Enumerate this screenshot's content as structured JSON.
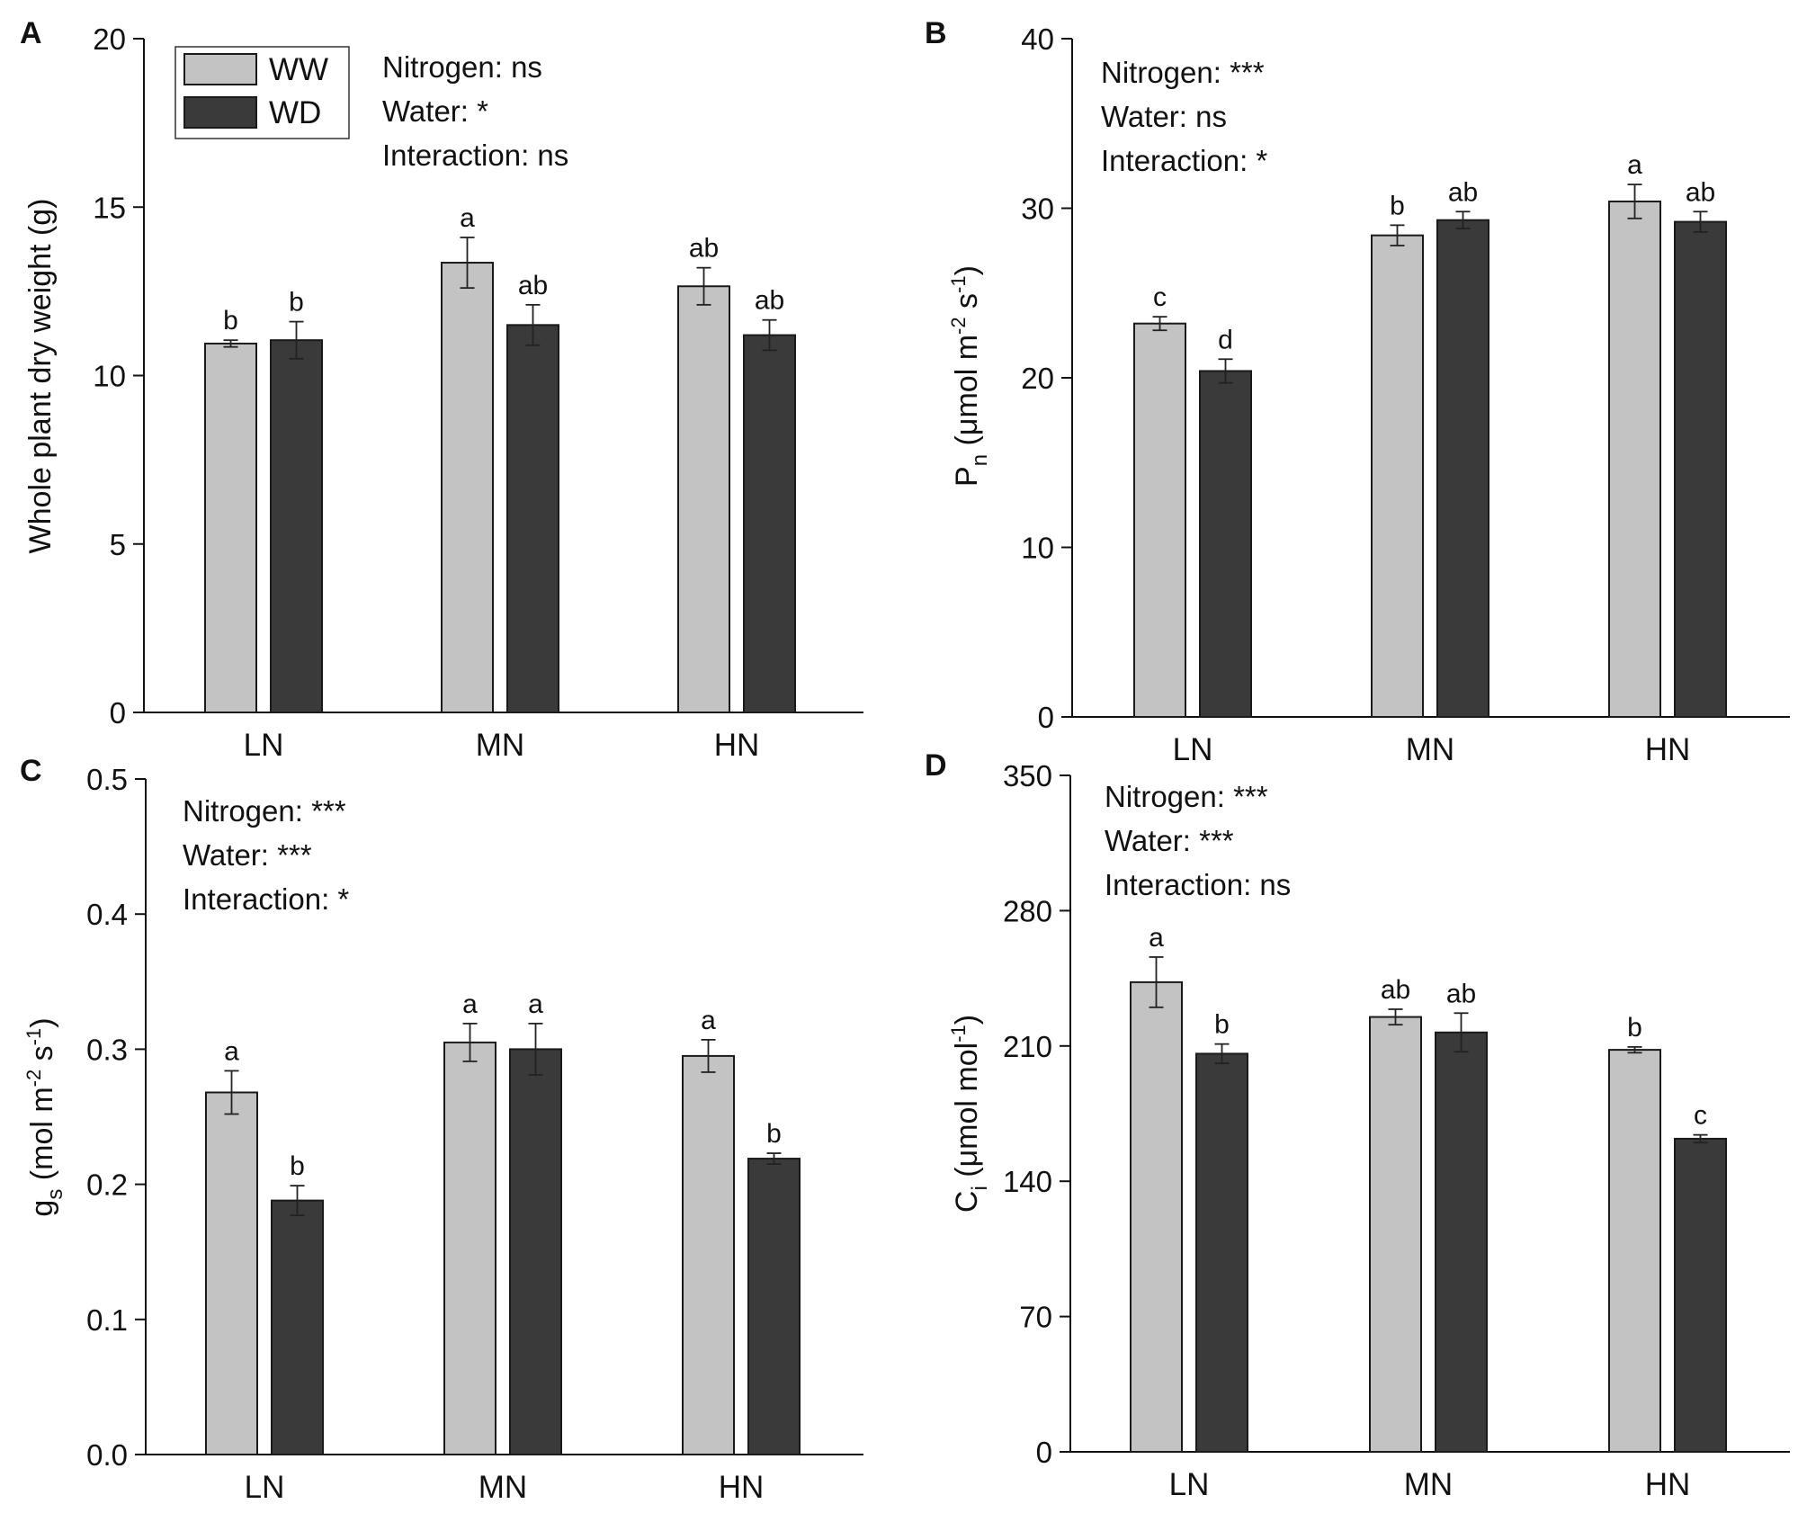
{
  "figure": {
    "background": "#ffffff",
    "colors": {
      "ww": "#c3c3c3",
      "wd": "#3a3a3a",
      "axis": "#111111",
      "error": "#222222"
    },
    "legend": [
      {
        "key": "ww",
        "label": "WW"
      },
      {
        "key": "wd",
        "label": "WD"
      }
    ]
  },
  "chart_data": [
    {
      "panel": "A",
      "type": "bar",
      "categories": [
        "LN",
        "MN",
        "HN"
      ],
      "ylim": [
        0,
        20
      ],
      "yticks": [
        "0",
        "5",
        "10",
        "15",
        "20"
      ],
      "ylabel": {
        "main": "Whole plant dry weight (g)"
      },
      "legend_position": "top-left",
      "anova": [
        "Nitrogen: ns",
        "Water: *",
        "Interaction: ns"
      ],
      "series": [
        {
          "name": "WW",
          "values": [
            10.95,
            13.35,
            12.65
          ],
          "errors": [
            0.1,
            0.75,
            0.55
          ],
          "letters": [
            "b",
            "a",
            "ab"
          ]
        },
        {
          "name": "WD",
          "values": [
            11.05,
            11.5,
            11.2
          ],
          "errors": [
            0.55,
            0.6,
            0.45
          ],
          "letters": [
            "b",
            "ab",
            "ab"
          ]
        }
      ]
    },
    {
      "panel": "B",
      "type": "bar",
      "categories": [
        "LN",
        "MN",
        "HN"
      ],
      "ylim": [
        0,
        40
      ],
      "yticks": [
        "0",
        "10",
        "20",
        "30",
        "40"
      ],
      "ylabel": {
        "main": "P",
        "sub": "n",
        "unit_open": " (",
        "mu": "μ",
        "unit_mid1": "mol m",
        "sup1": "-2",
        "unit_mid2": " s",
        "sup2": "-1",
        "unit_close": ")"
      },
      "anova": [
        "Nitrogen: ***",
        "Water: ns",
        "Interaction: *"
      ],
      "series": [
        {
          "name": "WW",
          "values": [
            23.2,
            28.4,
            30.4
          ],
          "errors": [
            0.4,
            0.6,
            1.0
          ],
          "letters": [
            "c",
            "b",
            "a"
          ]
        },
        {
          "name": "WD",
          "values": [
            20.4,
            29.3,
            29.2
          ],
          "errors": [
            0.7,
            0.5,
            0.6
          ],
          "letters": [
            "d",
            "ab",
            "ab"
          ]
        }
      ]
    },
    {
      "panel": "C",
      "type": "bar",
      "categories": [
        "LN",
        "MN",
        "HN"
      ],
      "ylim": [
        0,
        0.5
      ],
      "yticks": [
        "0.0",
        "0.1",
        "0.2",
        "0.3",
        "0.4",
        "0.5"
      ],
      "ylabel": {
        "main": "g",
        "sub": "s",
        "unit_open": " (",
        "unit_mid1": "mol m",
        "sup1": "-2",
        "unit_mid2": " s",
        "sup2": "-1",
        "unit_close": ")"
      },
      "anova": [
        "Nitrogen: ***",
        "Water: ***",
        "Interaction: *"
      ],
      "series": [
        {
          "name": "WW",
          "values": [
            0.268,
            0.305,
            0.295
          ],
          "errors": [
            0.016,
            0.014,
            0.012
          ],
          "letters": [
            "a",
            "a",
            "a"
          ]
        },
        {
          "name": "WD",
          "values": [
            0.188,
            0.3,
            0.219
          ],
          "errors": [
            0.011,
            0.019,
            0.004
          ],
          "letters": [
            "b",
            "a",
            "b"
          ]
        }
      ]
    },
    {
      "panel": "D",
      "type": "bar",
      "categories": [
        "LN",
        "MN",
        "HN"
      ],
      "ylim": [
        0,
        350
      ],
      "yticks": [
        "0",
        "70",
        "140",
        "210",
        "280",
        "350"
      ],
      "ylabel": {
        "main": "C",
        "sub": "i",
        "unit_open": " (",
        "mu": "μ",
        "unit_mid1": "mol mol",
        "sup1": "-1",
        "unit_close": ")"
      },
      "anova": [
        "Nitrogen: ***",
        "Water: ***",
        "Interaction: ns"
      ],
      "series": [
        {
          "name": "WW",
          "values": [
            243,
            225,
            208
          ],
          "errors": [
            13,
            4,
            1.5
          ],
          "letters": [
            "a",
            "ab",
            "b"
          ]
        },
        {
          "name": "WD",
          "values": [
            206,
            217,
            162
          ],
          "errors": [
            5,
            10,
            2
          ],
          "letters": [
            "b",
            "ab",
            "c"
          ]
        }
      ]
    }
  ]
}
